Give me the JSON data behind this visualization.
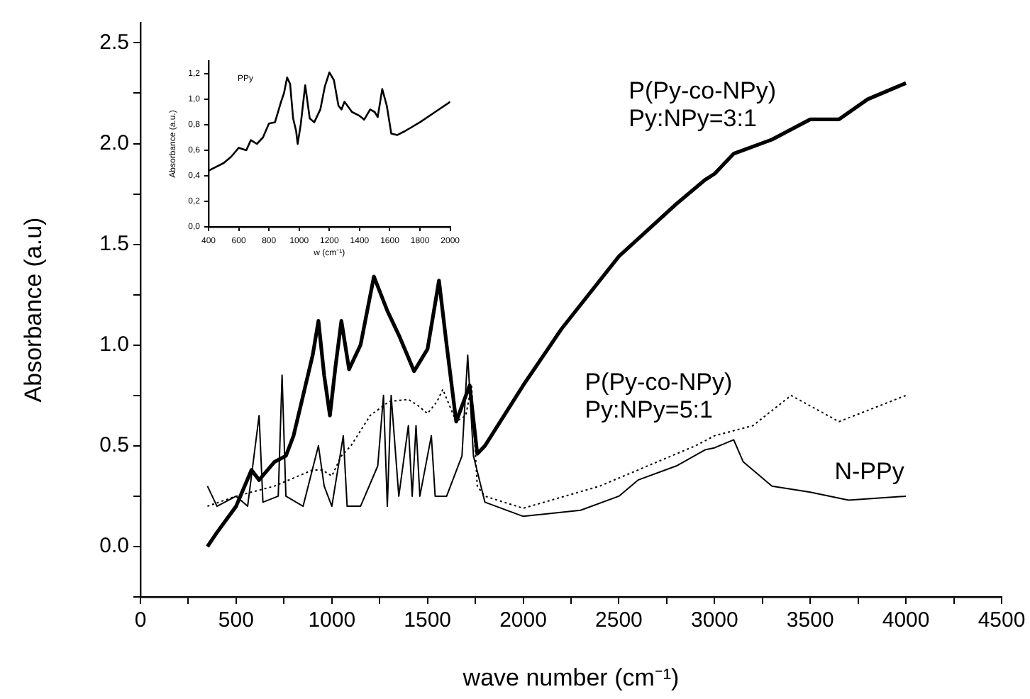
{
  "chart_data": [
    {
      "type": "line",
      "xlabel": "wave number (cm⁻¹)",
      "ylabel": "Absorbance (a.u)",
      "xlim": [
        0,
        4500
      ],
      "ylim": [
        -0.25,
        2.6
      ],
      "xticks": [
        0,
        {
          "value": 250,
          "label": null
        },
        500,
        {
          "value": 750,
          "label": null
        },
        1000,
        {
          "value": 1250,
          "label": null
        },
        1500,
        {
          "value": 1750,
          "label": null
        },
        2000,
        {
          "value": 2250,
          "label": null
        },
        2500,
        {
          "value": 2750,
          "label": null
        },
        3000,
        {
          "value": 3250,
          "label": null
        },
        3500,
        {
          "value": 3750,
          "label": null
        },
        4000,
        {
          "value": 4250,
          "label": null
        },
        4500
      ],
      "yticks": [
        {
          "value": -0.25,
          "label": null
        },
        {
          "value": 0,
          "label": "0.0"
        },
        {
          "value": 0.25,
          "label": null
        },
        0.5,
        {
          "value": 0.75,
          "label": null
        },
        {
          "value": 1,
          "label": "1.0"
        },
        {
          "value": 1.25,
          "label": null
        },
        1.5,
        {
          "value": 1.75,
          "label": null
        },
        {
          "value": 2,
          "label": "2.0"
        },
        {
          "value": 2.25,
          "label": null
        },
        2.5
      ],
      "grid": false,
      "legend": false,
      "marker": "none",
      "series": [
        {
          "name": "P(Py-co-NPy)\nPy:NPy=3:1",
          "color": "#000000",
          "line_style": "solid",
          "x": [
            350,
            400,
            500,
            580,
            620,
            700,
            760,
            800,
            850,
            900,
            930,
            960,
            990,
            1020,
            1050,
            1090,
            1150,
            1220,
            1290,
            1350,
            1430,
            1500,
            1560,
            1600,
            1650,
            1720,
            1760,
            1800,
            2000,
            2200,
            2500,
            2800,
            2950,
            3000,
            3100,
            3300,
            3500,
            3650,
            3800,
            4000
          ],
          "values": [
            0.0,
            0.07,
            0.2,
            0.38,
            0.33,
            0.42,
            0.45,
            0.55,
            0.75,
            0.95,
            1.12,
            0.85,
            0.65,
            0.9,
            1.12,
            0.88,
            1.0,
            1.34,
            1.17,
            1.05,
            0.87,
            0.98,
            1.32,
            1.0,
            0.62,
            0.8,
            0.46,
            0.5,
            0.8,
            1.08,
            1.44,
            1.7,
            1.82,
            1.85,
            1.95,
            2.02,
            2.12,
            2.12,
            2.22,
            2.3
          ]
        },
        {
          "name": "P(Py-co-NPy)\nPy:NPy=5:1",
          "color": "#000000",
          "line_style": "dotted",
          "x": [
            350,
            500,
            700,
            900,
            950,
            1000,
            1050,
            1100,
            1200,
            1300,
            1400,
            1450,
            1500,
            1550,
            1580,
            1650,
            1700,
            1730,
            1760,
            1800,
            2000,
            2400,
            2600,
            2900,
            3000,
            3200,
            3400,
            3650,
            4000
          ],
          "values": [
            0.2,
            0.25,
            0.3,
            0.38,
            0.38,
            0.35,
            0.45,
            0.5,
            0.65,
            0.72,
            0.73,
            0.7,
            0.66,
            0.72,
            0.78,
            0.62,
            0.65,
            0.8,
            0.3,
            0.25,
            0.19,
            0.3,
            0.38,
            0.5,
            0.55,
            0.6,
            0.75,
            0.62,
            0.75
          ]
        },
        {
          "name": "N-PPy",
          "color": "#000000",
          "line_style": "solid",
          "x": [
            350,
            400,
            500,
            560,
            620,
            640,
            720,
            740,
            760,
            850,
            930,
            960,
            1000,
            1060,
            1080,
            1150,
            1240,
            1270,
            1290,
            1310,
            1350,
            1400,
            1420,
            1440,
            1460,
            1520,
            1540,
            1600,
            1680,
            1710,
            1740,
            1800,
            2000,
            2300,
            2500,
            2600,
            2800,
            2950,
            3000,
            3100,
            3150,
            3300,
            3500,
            3700,
            4000
          ],
          "values": [
            0.3,
            0.2,
            0.25,
            0.2,
            0.65,
            0.22,
            0.25,
            0.85,
            0.25,
            0.2,
            0.5,
            0.3,
            0.2,
            0.55,
            0.2,
            0.2,
            0.4,
            0.75,
            0.2,
            0.75,
            0.25,
            0.6,
            0.25,
            0.6,
            0.25,
            0.55,
            0.25,
            0.25,
            0.45,
            0.95,
            0.45,
            0.22,
            0.15,
            0.18,
            0.25,
            0.33,
            0.4,
            0.48,
            0.49,
            0.53,
            0.42,
            0.3,
            0.27,
            0.23,
            0.25
          ]
        }
      ]
    },
    {
      "type": "line",
      "xlabel": "w (cm⁻¹)",
      "ylabel": "Absorbance (a.u.)",
      "xlim": [
        400,
        2000
      ],
      "ylim": [
        0,
        1.3
      ],
      "xticks": [
        400,
        600,
        800,
        1000,
        1200,
        1400,
        1600,
        1800,
        2000
      ],
      "yticks": [
        {
          "value": 0,
          "label": "0,0"
        },
        {
          "value": 0.2,
          "label": "0,2"
        },
        {
          "value": 0.4,
          "label": "0,4"
        },
        {
          "value": 0.6,
          "label": "0,6"
        },
        {
          "value": 0.8,
          "label": "0,8"
        },
        {
          "value": 1,
          "label": "1,0"
        },
        {
          "value": 1.2,
          "label": "1,2"
        }
      ],
      "grid": false,
      "legend": false,
      "marker": "none",
      "series": [
        {
          "color": "#000000",
          "line_style": "solid",
          "x": [
            400,
            450,
            500,
            550,
            600,
            650,
            680,
            720,
            760,
            800,
            840,
            880,
            900,
            920,
            940,
            960,
            980,
            990,
            1010,
            1040,
            1070,
            1100,
            1140,
            1170,
            1200,
            1230,
            1260,
            1280,
            1300,
            1350,
            1400,
            1430,
            1470,
            1500,
            1520,
            1550,
            1580,
            1610,
            1650,
            1700,
            1800,
            1900,
            2000
          ],
          "values": [
            0.44,
            0.47,
            0.5,
            0.55,
            0.62,
            0.6,
            0.68,
            0.65,
            0.7,
            0.81,
            0.82,
            0.98,
            1.05,
            1.17,
            1.12,
            0.85,
            0.75,
            0.65,
            0.8,
            1.11,
            0.85,
            0.82,
            0.92,
            1.1,
            1.21,
            1.15,
            0.95,
            0.92,
            0.98,
            0.9,
            0.87,
            0.84,
            0.92,
            0.9,
            0.86,
            1.08,
            0.95,
            0.73,
            0.72,
            0.75,
            0.82,
            0.9,
            0.98
          ]
        }
      ],
      "annotations": [
        "PPy"
      ]
    }
  ]
}
